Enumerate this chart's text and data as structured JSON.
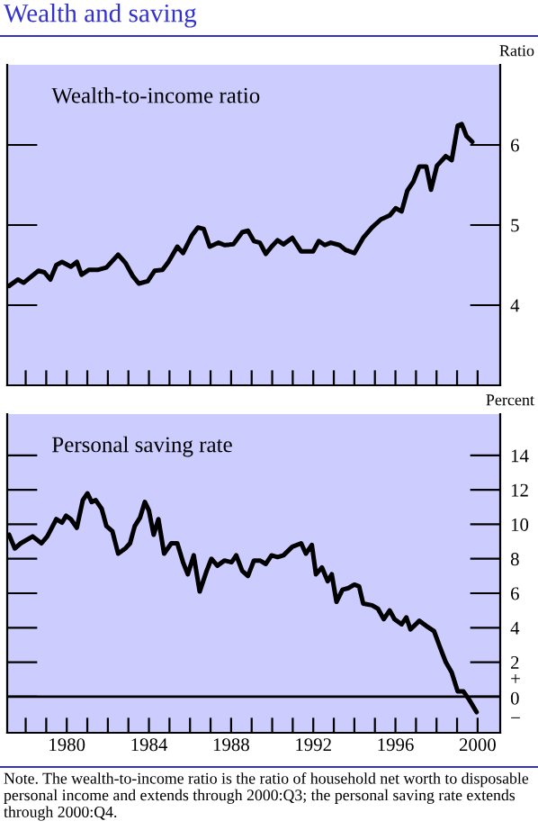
{
  "chart_data": [
    {
      "type": "line",
      "title": "Wealth and saving",
      "ylabel": "Ratio",
      "series": [
        {
          "name": "Wealth-to-income ratio",
          "color": "#000000",
          "x": [
            1977.69,
            1978.12,
            1978.4,
            1979.12,
            1979.41,
            1979.7,
            1979.99,
            1980.27,
            1980.7,
            1980.99,
            1981.22,
            1981.57,
            1982.0,
            1982.43,
            1983.0,
            1983.35,
            1983.72,
            1984.01,
            1984.44,
            1984.78,
            1985.16,
            1985.45,
            1985.88,
            1986.16,
            1986.59,
            1986.88,
            1987.17,
            1987.46,
            1987.89,
            1988.18,
            1988.61,
            1989.04,
            1989.32,
            1989.61,
            1989.9,
            1990.19,
            1990.47,
            1990.76,
            1991.05,
            1991.48,
            1991.91,
            1992.49,
            1992.77,
            1993.06,
            1993.35,
            1993.78,
            1994.07,
            1994.5,
            1994.93,
            1995.36,
            1995.79,
            1996.22,
            1996.51,
            1996.8,
            1997.08,
            1997.37,
            1997.66,
            1998.0,
            1998.23,
            1998.52,
            1998.95,
            1999.24,
            1999.53,
            1999.73,
            1999.96,
            2000.24
          ],
          "values": [
            4.24,
            4.32,
            4.28,
            4.43,
            4.41,
            4.32,
            4.5,
            4.54,
            4.48,
            4.54,
            4.38,
            4.44,
            4.44,
            4.47,
            4.63,
            4.53,
            4.36,
            4.27,
            4.3,
            4.43,
            4.44,
            4.54,
            4.73,
            4.65,
            4.87,
            4.97,
            4.95,
            4.73,
            4.78,
            4.75,
            4.76,
            4.91,
            4.93,
            4.8,
            4.78,
            4.64,
            4.73,
            4.81,
            4.76,
            4.84,
            4.67,
            4.67,
            4.8,
            4.75,
            4.78,
            4.75,
            4.69,
            4.65,
            4.84,
            4.97,
            5.07,
            5.12,
            5.21,
            5.17,
            5.43,
            5.54,
            5.73,
            5.73,
            5.44,
            5.74,
            5.86,
            5.81,
            6.24,
            6.26,
            6.11,
            6.04
          ]
        }
      ],
      "xlim": [
        1977.6,
        2001.6
      ],
      "xticks": [
        {
          "value": 1978.5,
          "label": null
        },
        {
          "value": 1979.5,
          "label": null
        },
        {
          "value": 1980.5,
          "label": null
        },
        {
          "value": 1981.5,
          "label": null
        },
        {
          "value": 1982.5,
          "label": null
        },
        {
          "value": 1983.5,
          "label": null
        },
        {
          "value": 1984.5,
          "label": null
        },
        {
          "value": 1985.5,
          "label": null
        },
        {
          "value": 1986.5,
          "label": null
        },
        {
          "value": 1987.5,
          "label": null
        },
        {
          "value": 1988.5,
          "label": null
        },
        {
          "value": 1989.5,
          "label": null
        },
        {
          "value": 1990.5,
          "label": null
        },
        {
          "value": 1991.5,
          "label": null
        },
        {
          "value": 1992.5,
          "label": null
        },
        {
          "value": 1993.5,
          "label": null
        },
        {
          "value": 1994.5,
          "label": null
        },
        {
          "value": 1995.5,
          "label": null
        },
        {
          "value": 1996.5,
          "label": null
        },
        {
          "value": 1997.5,
          "label": null
        },
        {
          "value": 1998.5,
          "label": null
        },
        {
          "value": 1999.5,
          "label": null
        },
        {
          "value": 2000.5,
          "label": null
        }
      ],
      "ylim": [
        3,
        7
      ],
      "yticks": [
        4,
        5,
        6
      ],
      "tick_labels": "y",
      "grid": false,
      "legend": "top left"
    },
    {
      "type": "line",
      "ylabel": "Percent",
      "series": [
        {
          "name": "Personal saving rate",
          "color": "#000000",
          "x": [
            1977.69,
            1977.97,
            1978.26,
            1978.84,
            1979.27,
            1979.55,
            1979.99,
            1980.27,
            1980.47,
            1980.7,
            1980.99,
            1981.28,
            1981.51,
            1981.71,
            1981.91,
            1982.2,
            1982.43,
            1982.72,
            1983.0,
            1983.35,
            1983.58,
            1983.81,
            1984.07,
            1984.3,
            1984.5,
            1984.73,
            1984.96,
            1985.24,
            1985.59,
            1985.88,
            1986.16,
            1986.39,
            1986.68,
            1986.97,
            1987.31,
            1987.54,
            1987.83,
            1988.18,
            1988.52,
            1988.75,
            1989.04,
            1989.32,
            1989.61,
            1989.9,
            1990.19,
            1990.47,
            1990.76,
            1991.05,
            1991.48,
            1991.91,
            1992.14,
            1992.43,
            1992.63,
            1992.92,
            1993.2,
            1993.4,
            1993.63,
            1993.92,
            1994.21,
            1994.5,
            1994.73,
            1994.93,
            1995.36,
            1995.65,
            1995.93,
            1996.22,
            1996.45,
            1996.8,
            1997.03,
            1997.23,
            1997.66,
            1998.0,
            1998.38,
            1998.66,
            1998.95,
            1999.24,
            1999.53,
            1999.81,
            2000.1,
            2000.45
          ],
          "values": [
            9.4,
            8.6,
            8.9,
            9.3,
            8.9,
            9.3,
            10.3,
            10.1,
            10.5,
            10.3,
            9.8,
            11.4,
            11.8,
            11.3,
            11.4,
            10.9,
            9.9,
            9.6,
            8.3,
            8.6,
            8.9,
            9.9,
            10.4,
            11.3,
            10.8,
            9.4,
            10.3,
            8.3,
            8.9,
            8.9,
            7.8,
            7.1,
            8.2,
            6.1,
            7.3,
            8.0,
            7.6,
            7.9,
            7.8,
            8.2,
            7.3,
            7.0,
            7.9,
            7.9,
            7.7,
            8.2,
            8.1,
            8.2,
            8.7,
            8.9,
            8.3,
            8.8,
            7.1,
            7.5,
            6.7,
            7.1,
            5.5,
            6.2,
            6.3,
            6.5,
            6.4,
            5.4,
            5.3,
            5.1,
            4.5,
            5.0,
            4.5,
            4.2,
            4.6,
            3.9,
            4.4,
            4.1,
            3.8,
            2.9,
            2.0,
            1.4,
            0.3,
            0.3,
            -0.2,
            -0.9
          ]
        }
      ],
      "xlim": [
        1977.6,
        2001.6
      ],
      "xticks": [
        {
          "value": 1978.5,
          "label": null
        },
        {
          "value": 1979.5,
          "label": null
        },
        {
          "value": 1980.5,
          "label": "1980"
        },
        {
          "value": 1981.5,
          "label": null
        },
        {
          "value": 1982.5,
          "label": null
        },
        {
          "value": 1983.5,
          "label": null
        },
        {
          "value": 1984.5,
          "label": "1984"
        },
        {
          "value": 1985.5,
          "label": null
        },
        {
          "value": 1986.5,
          "label": null
        },
        {
          "value": 1987.5,
          "label": null
        },
        {
          "value": 1988.5,
          "label": "1988"
        },
        {
          "value": 1989.5,
          "label": null
        },
        {
          "value": 1990.5,
          "label": null
        },
        {
          "value": 1991.5,
          "label": null
        },
        {
          "value": 1992.5,
          "label": "1992"
        },
        {
          "value": 1993.5,
          "label": null
        },
        {
          "value": 1994.5,
          "label": null
        },
        {
          "value": 1995.5,
          "label": null
        },
        {
          "value": 1996.5,
          "label": "1996"
        },
        {
          "value": 1997.5,
          "label": null
        },
        {
          "value": 1998.5,
          "label": null
        },
        {
          "value": 1999.5,
          "label": null
        },
        {
          "value": 2000.5,
          "label": "2000"
        }
      ],
      "ylim": [
        -2.1,
        16.4
      ],
      "yticks": [
        {
          "value": 0,
          "label": "+\n0\n−"
        },
        2,
        4,
        6,
        8,
        10,
        12,
        14
      ],
      "ref_lines": [
        {
          "axis": "y",
          "value": 0,
          "color": "#000000"
        }
      ],
      "grid": false,
      "legend": "top left",
      "annotations": [
        "Note. The wealth-to-income ratio is the ratio of household net worth to disposable personal income and extends through 2000:Q3; the personal saving rate extends through 2000:Q4."
      ]
    }
  ]
}
